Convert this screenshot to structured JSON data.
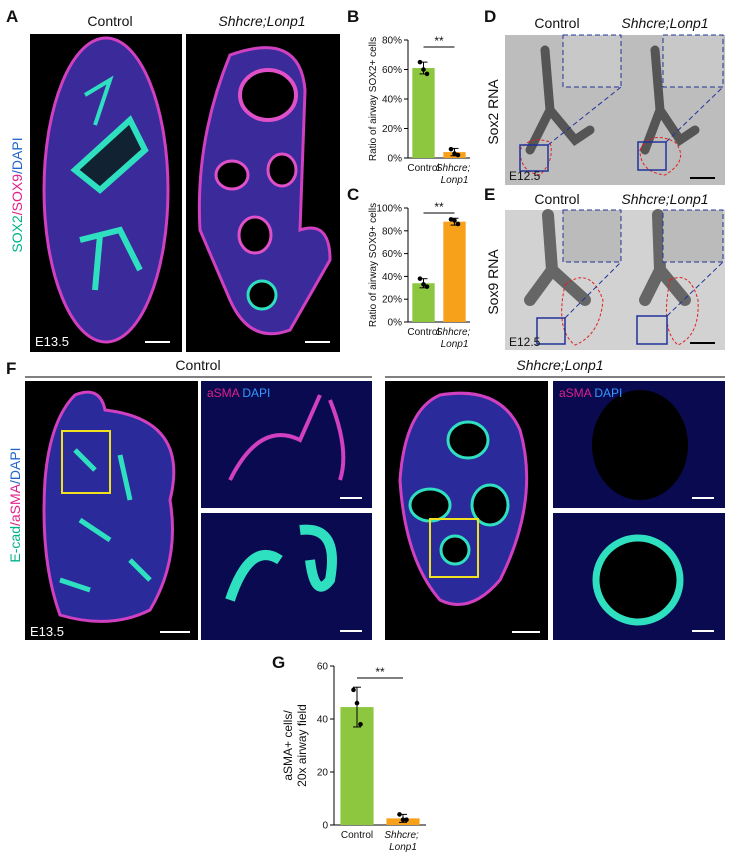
{
  "panel_labels": [
    "A",
    "B",
    "C",
    "D",
    "E",
    "F",
    "G"
  ],
  "A": {
    "titles": [
      "Control",
      "Shhcre;Lonp1"
    ],
    "stain": [
      "SOX2",
      "/SOX9",
      "/DAPI"
    ],
    "stage": "E13.5"
  },
  "D": {
    "titles": [
      "Control",
      "Shhcre;Lonp1"
    ],
    "probe": "Sox2 RNA",
    "stage": "E12.5"
  },
  "E": {
    "titles": [
      "Control",
      "Shhcre;Lonp1"
    ],
    "probe": "Sox9 RNA",
    "stage": "E12.5"
  },
  "F": {
    "titles": [
      "Control",
      "Shhcre;Lonp1"
    ],
    "stain": [
      "E-cad",
      "/aSMA",
      "/DAPI"
    ],
    "inset_stain": [
      "aSMA",
      "DAPI"
    ],
    "stage": "E13.5"
  },
  "chart_data": [
    {
      "type": "bar",
      "ylabel": "Ratio of airway SOX2+ cells",
      "categories": [
        "Control",
        "Shhcre; Lonp1"
      ],
      "values": [
        61,
        4
      ],
      "errors": [
        4,
        2.5
      ],
      "points": [
        [
          65,
          60,
          57
        ],
        [
          6,
          3,
          2
        ]
      ],
      "colors": [
        "#8dc63f",
        "#f7a11a"
      ],
      "ylim": [
        0,
        80
      ],
      "yticks": [
        {
          "value": 0,
          "label": "0%"
        },
        {
          "value": 20,
          "label": "20%"
        },
        {
          "value": 40,
          "label": "40%"
        },
        {
          "value": 60,
          "label": "60%"
        },
        {
          "value": 80,
          "label": "80%"
        }
      ],
      "annotation": "**"
    },
    {
      "type": "bar",
      "ylabel": "Ratio of airway SOX9+ cells",
      "categories": [
        "Control",
        "Shhcre; Lonp1"
      ],
      "values": [
        34,
        88
      ],
      "errors": [
        4,
        3
      ],
      "points": [
        [
          38,
          33,
          31
        ],
        [
          90,
          89,
          86
        ]
      ],
      "colors": [
        "#8dc63f",
        "#f7a11a"
      ],
      "ylim": [
        0,
        100
      ],
      "yticks": [
        {
          "value": 0,
          "label": "0%"
        },
        {
          "value": 20,
          "label": "20%"
        },
        {
          "value": 40,
          "label": "40%"
        },
        {
          "value": 60,
          "label": "60%"
        },
        {
          "value": 80,
          "label": "80%"
        },
        {
          "value": 100,
          "label": "100%"
        }
      ],
      "annotation": "**"
    },
    {
      "type": "bar",
      "ylabel": [
        "aSMA+ cells/",
        "20x airway field"
      ],
      "categories": [
        "Control",
        "Shhcre; Lonp1"
      ],
      "values": [
        44.5,
        2.5
      ],
      "errors": [
        7.5,
        1.5
      ],
      "points": [
        [
          51,
          46,
          38
        ],
        [
          4,
          2,
          2
        ]
      ],
      "colors": [
        "#8dc63f",
        "#f7a11a"
      ],
      "ylim": [
        0,
        60
      ],
      "yticks": [
        0,
        20,
        40,
        60
      ],
      "annotation": "**"
    }
  ]
}
